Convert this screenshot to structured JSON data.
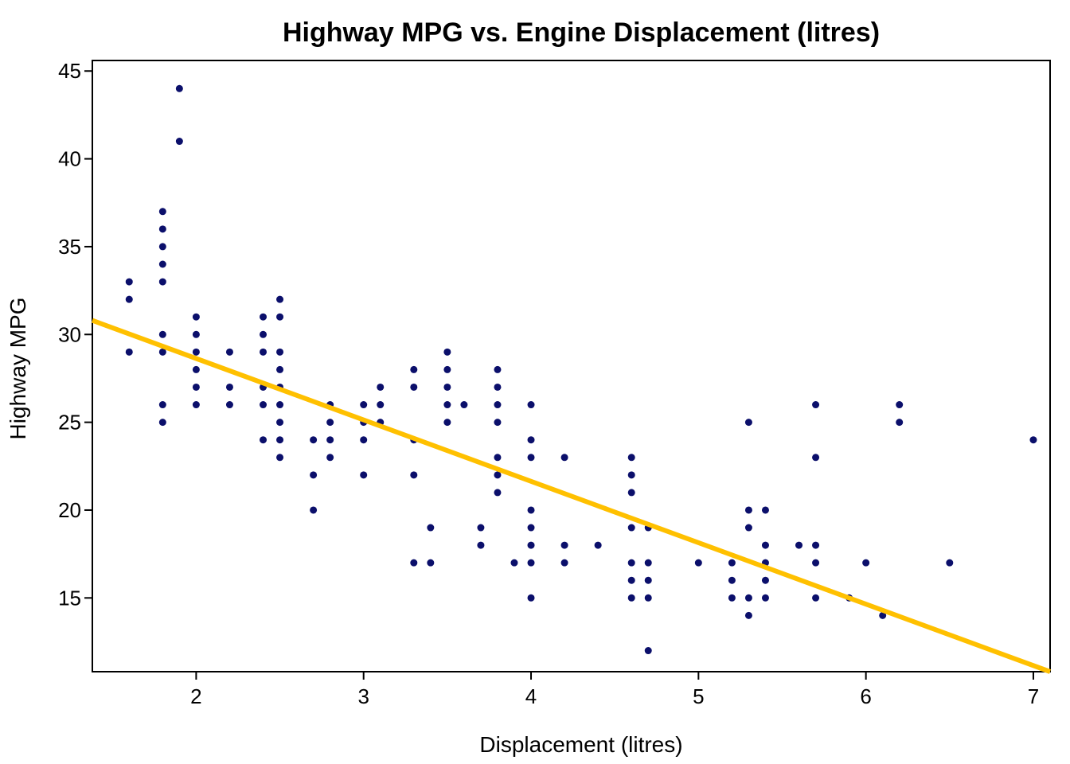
{
  "chart_data": {
    "type": "scatter",
    "title": "Highway MPG vs. Engine Displacement (litres)",
    "xlabel": "Displacement (litres)",
    "ylabel": "Highway MPG",
    "xlim": [
      1.38,
      7.1
    ],
    "ylim": [
      10.8,
      45.6
    ],
    "xticks": [
      2,
      3,
      4,
      5,
      6,
      7
    ],
    "yticks": [
      15,
      20,
      25,
      30,
      35,
      40,
      45
    ],
    "grid": false,
    "legend": "none",
    "colors": {
      "points": "#0b0f6b",
      "trend": "#ffc000",
      "axes": "#000000"
    },
    "points": [
      [
        1.6,
        33
      ],
      [
        1.6,
        32
      ],
      [
        1.6,
        29
      ],
      [
        1.8,
        37
      ],
      [
        1.8,
        36
      ],
      [
        1.8,
        35
      ],
      [
        1.8,
        34
      ],
      [
        1.8,
        33
      ],
      [
        1.8,
        30
      ],
      [
        1.8,
        29
      ],
      [
        1.8,
        26
      ],
      [
        1.8,
        25
      ],
      [
        1.9,
        44
      ],
      [
        1.9,
        41
      ],
      [
        2.0,
        31
      ],
      [
        2.0,
        30
      ],
      [
        2.0,
        29
      ],
      [
        2.0,
        28
      ],
      [
        2.0,
        27
      ],
      [
        2.0,
        26
      ],
      [
        2.2,
        29
      ],
      [
        2.2,
        27
      ],
      [
        2.2,
        26
      ],
      [
        2.4,
        31
      ],
      [
        2.4,
        30
      ],
      [
        2.4,
        29
      ],
      [
        2.4,
        27
      ],
      [
        2.4,
        26
      ],
      [
        2.4,
        24
      ],
      [
        2.5,
        32
      ],
      [
        2.5,
        31
      ],
      [
        2.5,
        29
      ],
      [
        2.5,
        28
      ],
      [
        2.5,
        27
      ],
      [
        2.5,
        26
      ],
      [
        2.5,
        25
      ],
      [
        2.5,
        24
      ],
      [
        2.5,
        23
      ],
      [
        2.7,
        24
      ],
      [
        2.7,
        22
      ],
      [
        2.7,
        20
      ],
      [
        2.8,
        26
      ],
      [
        2.8,
        25
      ],
      [
        2.8,
        24
      ],
      [
        2.8,
        23
      ],
      [
        3.0,
        26
      ],
      [
        3.0,
        25
      ],
      [
        3.0,
        24
      ],
      [
        3.0,
        22
      ],
      [
        3.1,
        27
      ],
      [
        3.1,
        26
      ],
      [
        3.1,
        25
      ],
      [
        3.3,
        28
      ],
      [
        3.3,
        27
      ],
      [
        3.3,
        24
      ],
      [
        3.3,
        22
      ],
      [
        3.3,
        17
      ],
      [
        3.4,
        19
      ],
      [
        3.4,
        17
      ],
      [
        3.5,
        29
      ],
      [
        3.5,
        28
      ],
      [
        3.5,
        27
      ],
      [
        3.5,
        26
      ],
      [
        3.5,
        25
      ],
      [
        3.6,
        26
      ],
      [
        3.7,
        19
      ],
      [
        3.7,
        18
      ],
      [
        3.8,
        28
      ],
      [
        3.8,
        27
      ],
      [
        3.8,
        26
      ],
      [
        3.8,
        25
      ],
      [
        3.8,
        23
      ],
      [
        3.8,
        22
      ],
      [
        3.8,
        21
      ],
      [
        3.9,
        17
      ],
      [
        4.0,
        26
      ],
      [
        4.0,
        24
      ],
      [
        4.0,
        23
      ],
      [
        4.0,
        20
      ],
      [
        4.0,
        19
      ],
      [
        4.0,
        18
      ],
      [
        4.0,
        17
      ],
      [
        4.0,
        15
      ],
      [
        4.2,
        23
      ],
      [
        4.2,
        18
      ],
      [
        4.2,
        17
      ],
      [
        4.4,
        18
      ],
      [
        4.6,
        23
      ],
      [
        4.6,
        22
      ],
      [
        4.6,
        21
      ],
      [
        4.6,
        19
      ],
      [
        4.6,
        17
      ],
      [
        4.6,
        16
      ],
      [
        4.6,
        15
      ],
      [
        4.7,
        19
      ],
      [
        4.7,
        17
      ],
      [
        4.7,
        16
      ],
      [
        4.7,
        15
      ],
      [
        4.7,
        12
      ],
      [
        5.0,
        17
      ],
      [
        5.2,
        17
      ],
      [
        5.2,
        16
      ],
      [
        5.2,
        15
      ],
      [
        5.3,
        25
      ],
      [
        5.3,
        20
      ],
      [
        5.3,
        19
      ],
      [
        5.3,
        15
      ],
      [
        5.3,
        14
      ],
      [
        5.4,
        20
      ],
      [
        5.4,
        18
      ],
      [
        5.4,
        17
      ],
      [
        5.4,
        16
      ],
      [
        5.4,
        15
      ],
      [
        5.6,
        18
      ],
      [
        5.7,
        26
      ],
      [
        5.7,
        23
      ],
      [
        5.7,
        18
      ],
      [
        5.7,
        17
      ],
      [
        5.7,
        15
      ],
      [
        5.9,
        15
      ],
      [
        6.0,
        17
      ],
      [
        6.1,
        14
      ],
      [
        6.2,
        26
      ],
      [
        6.2,
        25
      ],
      [
        6.5,
        17
      ],
      [
        7.0,
        24
      ]
    ],
    "trend_line": {
      "x": [
        1.38,
        7.1
      ],
      "y": [
        30.8,
        10.8
      ]
    }
  }
}
